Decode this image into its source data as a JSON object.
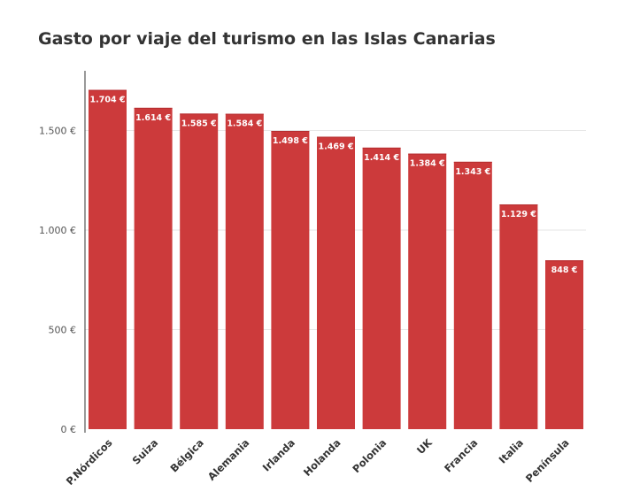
{
  "title": "Gasto por viaje del turismo en las Islas Canarias",
  "colors": {
    "bar": "#cc3a3b",
    "bar_edge": "#b52e30",
    "grid": "#e6e6e6",
    "axis": "#333333"
  },
  "chart_data": {
    "type": "bar",
    "categories": [
      "P.Nórdicos",
      "Suiza",
      "Bélgica",
      "Alemania",
      "Irlanda",
      "Holanda",
      "Polonia",
      "UK",
      "Francia",
      "Italia",
      "Península"
    ],
    "values": [
      1704,
      1614,
      1585,
      1584,
      1498,
      1469,
      1414,
      1384,
      1343,
      1129,
      848
    ],
    "data_labels": [
      "1.704 €",
      "1.614 €",
      "1.585 €",
      "1.584 €",
      "1.498 €",
      "1.469 €",
      "1.414 €",
      "1.384 €",
      "1.343 €",
      "1.129 €",
      "848 €"
    ],
    "yticks": [
      0,
      500,
      1000,
      1500
    ],
    "ytick_labels": [
      "0 €",
      "500 €",
      "1.000 €",
      "1.500 €"
    ],
    "ylim": [
      0,
      1800
    ],
    "grid": true,
    "title": "Gasto por viaje del turismo en las Islas Canarias",
    "xlabel": "",
    "ylabel": ""
  }
}
